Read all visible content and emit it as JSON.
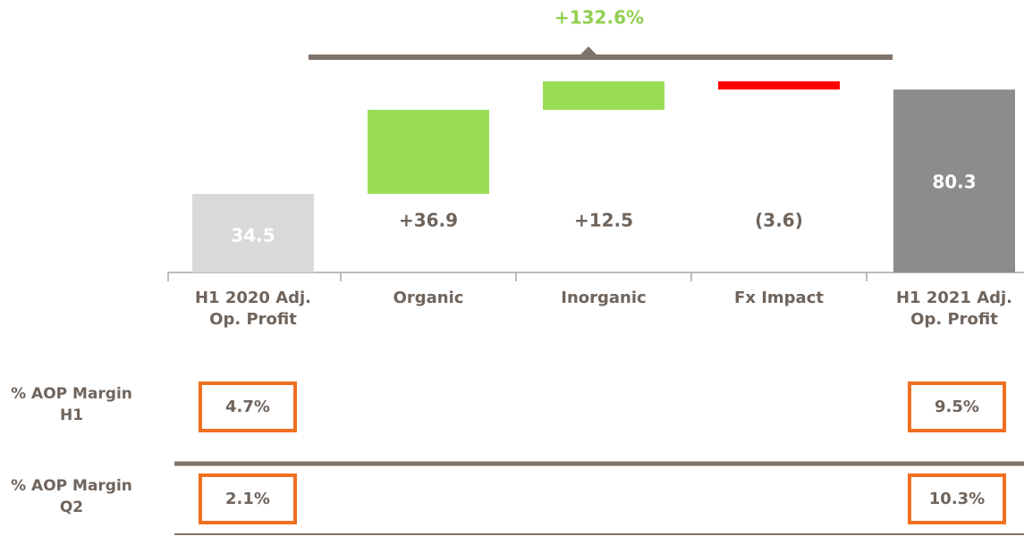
{
  "chart_data": {
    "type": "waterfall",
    "categories": [
      "H1 2020 Adj. Op. Profit",
      "Organic",
      "Inorganic",
      "Fx Impact",
      "H1 2021 Adj. Op. Profit"
    ],
    "values": [
      34.5,
      36.9,
      12.5,
      -3.6,
      80.3
    ],
    "value_labels": [
      "34.5",
      "+36.9",
      "+12.5",
      "(3.6)",
      "80.3"
    ],
    "measures": [
      "absolute",
      "relative",
      "relative",
      "relative",
      "total"
    ],
    "colors": {
      "absolute": "#d9d9d9",
      "increase": "#99dd55",
      "decrease": "#ff0000",
      "total": "#8c8c8c"
    },
    "annotation": "+132.6%"
  },
  "margins": {
    "rows": [
      {
        "label": "% AOP Margin H1",
        "values": [
          "4.7%",
          "9.5%"
        ]
      },
      {
        "label": "% AOP Margin Q2",
        "values": [
          "2.1%",
          "10.3%"
        ]
      }
    ]
  }
}
